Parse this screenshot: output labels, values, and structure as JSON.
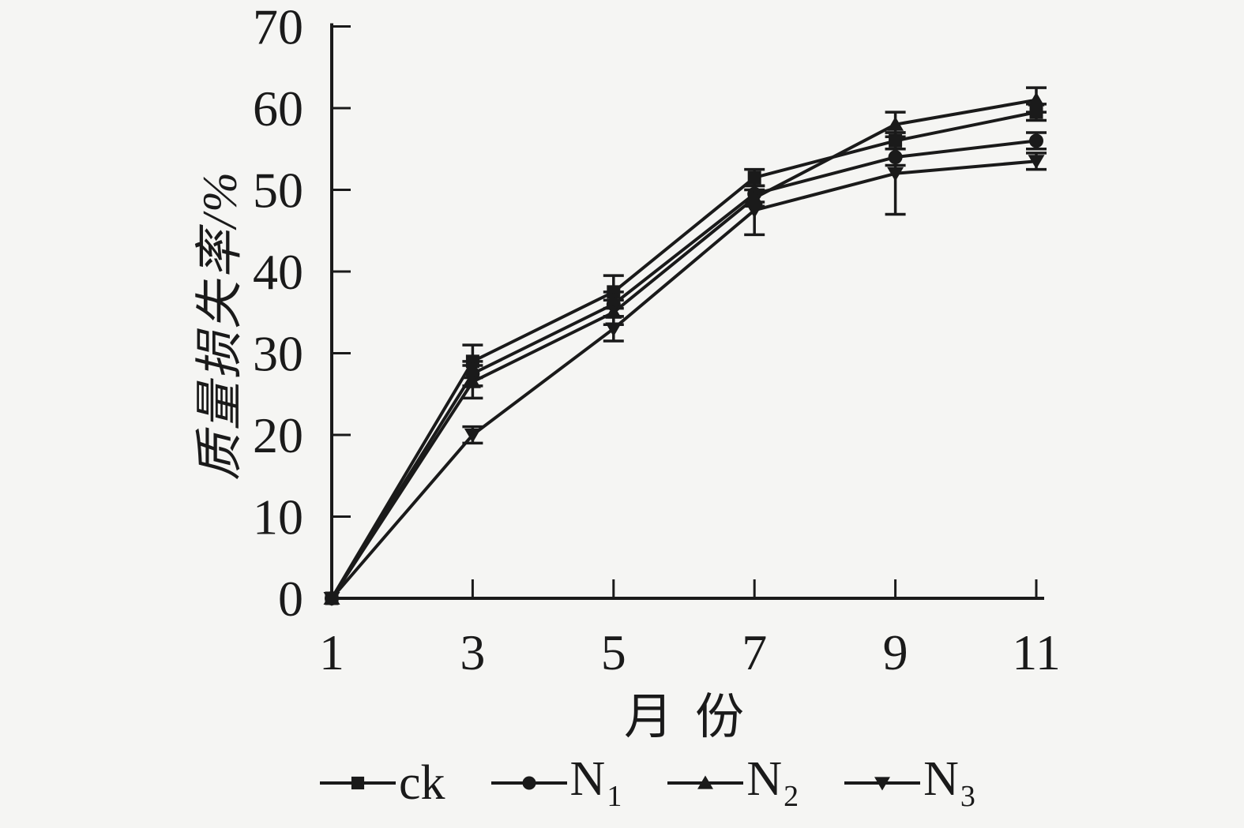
{
  "page": {
    "background": "#f5f5f3",
    "ink_color": "#1a1a1a"
  },
  "chart_data": {
    "type": "line",
    "title": "",
    "xlabel": "月份",
    "ylabel": "质量损失率/%",
    "xlim": [
      1,
      11
    ],
    "ylim": [
      0,
      70
    ],
    "grid": false,
    "legend_position": "bottom",
    "x": [
      1,
      3,
      5,
      7,
      9,
      11
    ],
    "x_tick_labels": [
      "1",
      "3",
      "5",
      "7",
      "9",
      "11"
    ],
    "y_ticks": [
      0,
      10,
      20,
      30,
      40,
      50,
      60,
      70
    ],
    "y_tick_labels": [
      "0",
      "10",
      "20",
      "30",
      "40",
      "50",
      "60",
      "70"
    ],
    "series": [
      {
        "name": "ck",
        "label_base": "ck",
        "label_sub": "",
        "marker": "square",
        "values": [
          0,
          29,
          37.5,
          51.5,
          56,
          59.5
        ],
        "errors": [
          0,
          2,
          2,
          1,
          1,
          1
        ]
      },
      {
        "name": "N1",
        "label_base": "N",
        "label_sub": "1",
        "marker": "circle",
        "values": [
          0,
          27.5,
          36,
          49.5,
          54,
          56
        ],
        "errors": [
          0,
          1.5,
          1.5,
          1,
          1,
          1
        ]
      },
      {
        "name": "N2",
        "label_base": "N",
        "label_sub": "2",
        "marker": "triangle-up",
        "values": [
          0,
          26.5,
          35,
          49,
          58,
          61
        ],
        "errors": [
          0,
          2,
          1.5,
          1,
          1.5,
          1.5
        ]
      },
      {
        "name": "N3",
        "label_base": "N",
        "label_sub": "3",
        "marker": "triangle-down",
        "values": [
          0,
          20,
          33,
          47.5,
          52,
          53.5
        ],
        "errors": [
          0,
          1,
          1.5,
          3,
          5,
          1
        ]
      }
    ]
  }
}
